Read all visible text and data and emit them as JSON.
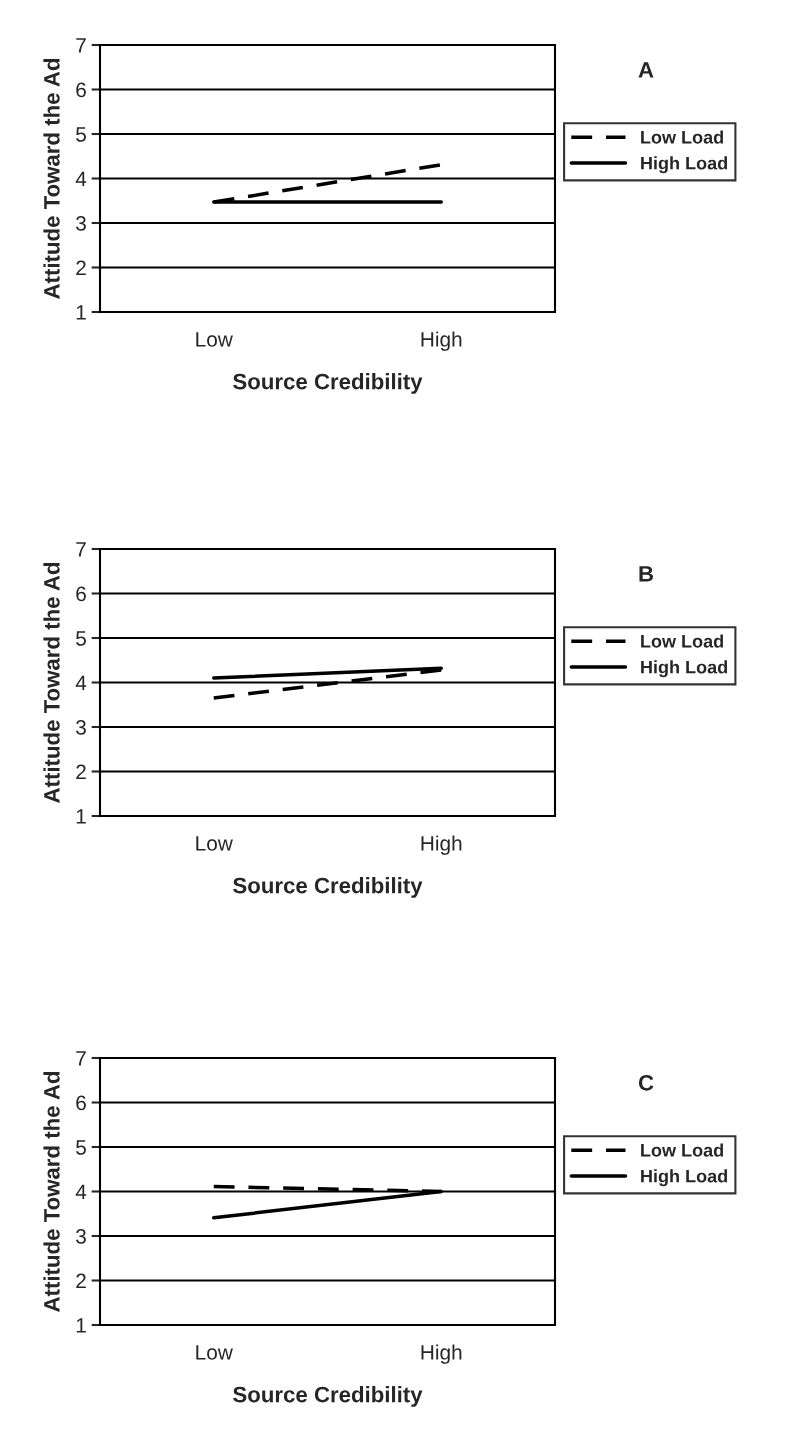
{
  "chart_data": [
    {
      "type": "line",
      "annotations": [
        "A"
      ],
      "xlabel": "Source Credibility",
      "ylabel": "Attitude Toward the Ad",
      "categories": [
        "Low",
        "High"
      ],
      "ylim": [
        1,
        7
      ],
      "yticks": [
        1,
        2,
        3,
        4,
        5,
        6,
        7
      ],
      "grid": "y",
      "legend": "right",
      "marker": "none",
      "series": [
        {
          "name": "Low Load",
          "color": "#000000",
          "line_style": "dashed",
          "values": [
            3.47,
            4.31
          ]
        },
        {
          "name": "High Load",
          "color": "#000000",
          "line_style": "solid",
          "values": [
            3.47,
            3.47
          ]
        }
      ]
    },
    {
      "type": "line",
      "annotations": [
        "B"
      ],
      "xlabel": "Source Credibility",
      "ylabel": "Attitude Toward the Ad",
      "categories": [
        "Low",
        "High"
      ],
      "ylim": [
        1,
        7
      ],
      "yticks": [
        1,
        2,
        3,
        4,
        5,
        6,
        7
      ],
      "grid": "y",
      "legend": "right",
      "marker": "none",
      "series": [
        {
          "name": "Low Load",
          "color": "#000000",
          "line_style": "dashed",
          "values": [
            3.65,
            4.28
          ]
        },
        {
          "name": "High Load",
          "color": "#000000",
          "line_style": "solid",
          "values": [
            4.1,
            4.32
          ]
        }
      ]
    },
    {
      "type": "line",
      "annotations": [
        "C"
      ],
      "xlabel": "Source Credibility",
      "ylabel": "Attitude Toward the Ad",
      "categories": [
        "Low",
        "High"
      ],
      "ylim": [
        1,
        7
      ],
      "yticks": [
        1,
        2,
        3,
        4,
        5,
        6,
        7
      ],
      "grid": "y",
      "legend": "right",
      "marker": "none",
      "series": [
        {
          "name": "Low Load",
          "color": "#000000",
          "line_style": "dashed",
          "values": [
            4.11,
            4.0
          ]
        },
        {
          "name": "High Load",
          "color": "#000000",
          "line_style": "solid",
          "values": [
            3.41,
            4.0
          ]
        }
      ]
    }
  ]
}
